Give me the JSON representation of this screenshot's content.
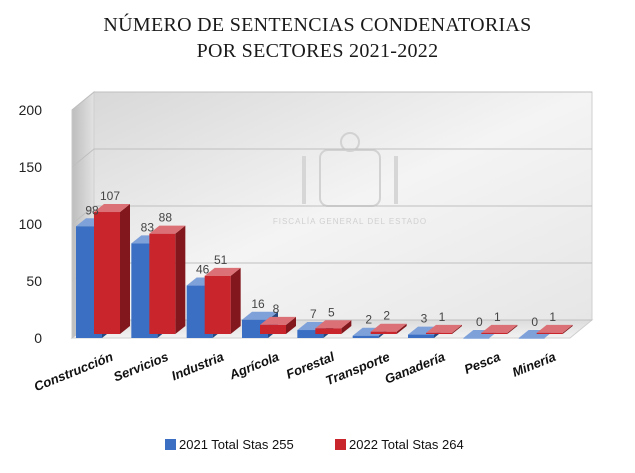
{
  "chart_data": {
    "type": "bar",
    "title_lines": [
      "NÚMERO DE SENTENCIAS CONDENATORIAS",
      "POR SECTORES 2021-2022"
    ],
    "categories": [
      "Construcción",
      "Servicios",
      "Industria",
      "Agrícola",
      "Forestal",
      "Transporte",
      "Ganadería",
      "Pesca",
      "Minería"
    ],
    "series": [
      {
        "name": "2021 Total Stas 255",
        "color": "#3a6fc4",
        "values": [
          98,
          83,
          46,
          16,
          7,
          2,
          3,
          0,
          0
        ]
      },
      {
        "name": "2022 Total Stas 264",
        "color": "#c8252c",
        "values": [
          107,
          88,
          51,
          8,
          5,
          2,
          1,
          1,
          1
        ]
      }
    ],
    "yticks": [
      0,
      50,
      100,
      150,
      200
    ],
    "ylim": [
      0,
      200
    ],
    "xlabel": "",
    "ylabel": "",
    "grid": true,
    "legend_position": "bottom",
    "watermark": "FISCALÍA GENERAL DEL ESTADO"
  }
}
